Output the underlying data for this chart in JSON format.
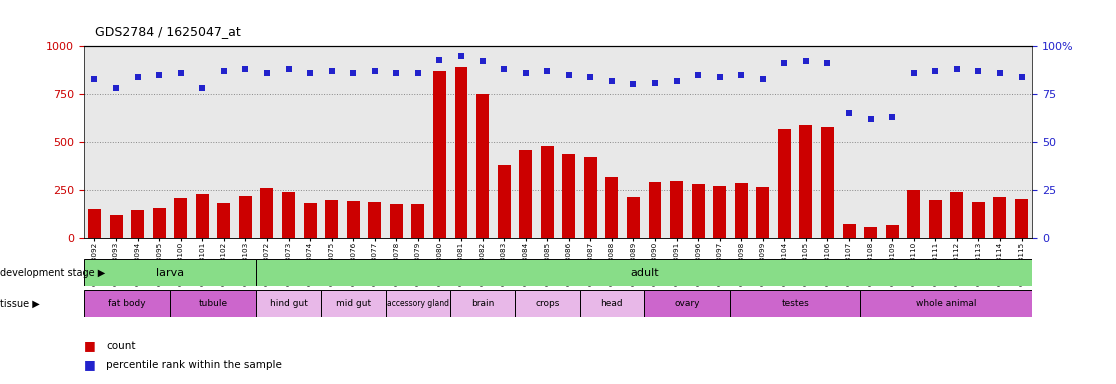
{
  "title": "GDS2784 / 1625047_at",
  "samples": [
    "GSM188092",
    "GSM188093",
    "GSM188094",
    "GSM188095",
    "GSM188100",
    "GSM188101",
    "GSM188102",
    "GSM188103",
    "GSM188072",
    "GSM188073",
    "GSM188074",
    "GSM188075",
    "GSM188076",
    "GSM188077",
    "GSM188078",
    "GSM188079",
    "GSM188080",
    "GSM188081",
    "GSM188082",
    "GSM188083",
    "GSM188084",
    "GSM188085",
    "GSM188086",
    "GSM188087",
    "GSM188088",
    "GSM188089",
    "GSM188090",
    "GSM188091",
    "GSM188096",
    "GSM188097",
    "GSM188098",
    "GSM188099",
    "GSM188104",
    "GSM188105",
    "GSM188106",
    "GSM188107",
    "GSM188108",
    "GSM188109",
    "GSM188110",
    "GSM188111",
    "GSM188112",
    "GSM188113",
    "GSM188114",
    "GSM188115"
  ],
  "counts": [
    150,
    120,
    145,
    155,
    210,
    230,
    185,
    220,
    260,
    240,
    185,
    200,
    195,
    190,
    175,
    180,
    870,
    890,
    750,
    380,
    460,
    480,
    440,
    420,
    320,
    215,
    290,
    295,
    280,
    270,
    285,
    265,
    570,
    590,
    580,
    75,
    60,
    70,
    250,
    200,
    240,
    190,
    215,
    205
  ],
  "percentiles": [
    83,
    78,
    84,
    85,
    86,
    78,
    87,
    88,
    86,
    88,
    86,
    87,
    86,
    87,
    86,
    86,
    93,
    95,
    92,
    88,
    86,
    87,
    85,
    84,
    82,
    80,
    81,
    82,
    85,
    84,
    85,
    83,
    91,
    92,
    91,
    65,
    62,
    63,
    86,
    87,
    88,
    87,
    86,
    84
  ],
  "development_stages": [
    {
      "label": "larva",
      "start": 0,
      "end": 8
    },
    {
      "label": "adult",
      "start": 8,
      "end": 44
    }
  ],
  "tissues": [
    {
      "label": "fat body",
      "start": 0,
      "end": 4,
      "color": "#cc66cc"
    },
    {
      "label": "tubule",
      "start": 4,
      "end": 8,
      "color": "#cc66cc"
    },
    {
      "label": "hind gut",
      "start": 8,
      "end": 11,
      "color": "#e8b8e8"
    },
    {
      "label": "mid gut",
      "start": 11,
      "end": 14,
      "color": "#e8b8e8"
    },
    {
      "label": "accessory gland",
      "start": 14,
      "end": 17,
      "color": "#e8b8e8"
    },
    {
      "label": "brain",
      "start": 17,
      "end": 20,
      "color": "#e8b8e8"
    },
    {
      "label": "crops",
      "start": 20,
      "end": 23,
      "color": "#e8b8e8"
    },
    {
      "label": "head",
      "start": 23,
      "end": 26,
      "color": "#e8b8e8"
    },
    {
      "label": "ovary",
      "start": 26,
      "end": 30,
      "color": "#cc66cc"
    },
    {
      "label": "testes",
      "start": 30,
      "end": 36,
      "color": "#cc66cc"
    },
    {
      "label": "whole animal",
      "start": 36,
      "end": 44,
      "color": "#cc66cc"
    }
  ],
  "bar_color": "#cc0000",
  "dot_color": "#2222cc",
  "dev_color": "#88dd88",
  "ylim_left": [
    0,
    1000
  ],
  "ylim_right": [
    0,
    100
  ],
  "yticks_left": [
    0,
    250,
    500,
    750,
    1000
  ],
  "yticks_right": [
    0,
    25,
    50,
    75,
    100
  ],
  "plot_bg": "#e8e8e8"
}
